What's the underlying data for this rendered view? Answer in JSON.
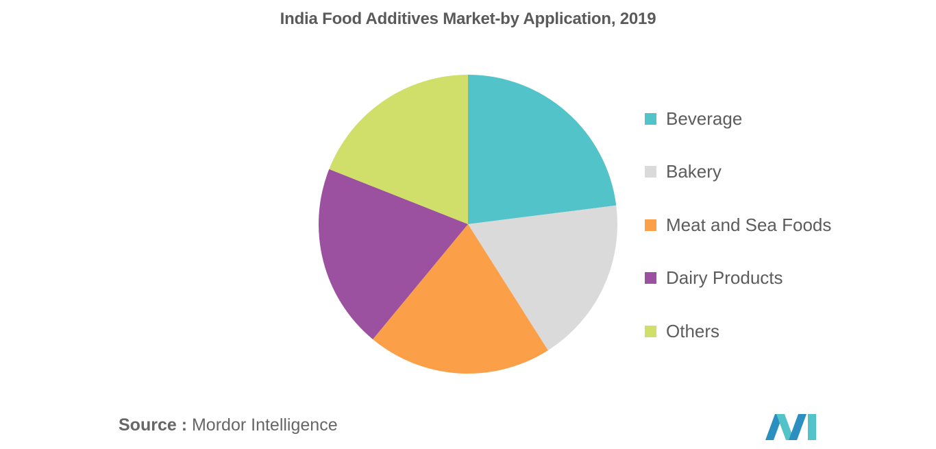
{
  "chart_data": {
    "type": "pie",
    "title": "India Food Additives Market-by Application, 2019",
    "categories": [
      "Beverage",
      "Bakery",
      "Meat and Sea Foods",
      "Dairy Products",
      "Others"
    ],
    "values": [
      23,
      18,
      20,
      20,
      19
    ],
    "colors": [
      "#52c3c9",
      "#dadada",
      "#fba049",
      "#9c51a0",
      "#cfdf6a"
    ],
    "legend": "right"
  },
  "source": {
    "label": "Source :",
    "text": "Mordor Intelligence"
  },
  "logo": {
    "icon": "mordor-intelligence-logo",
    "colors": [
      "#2c8fbf",
      "#52c3c9"
    ]
  }
}
